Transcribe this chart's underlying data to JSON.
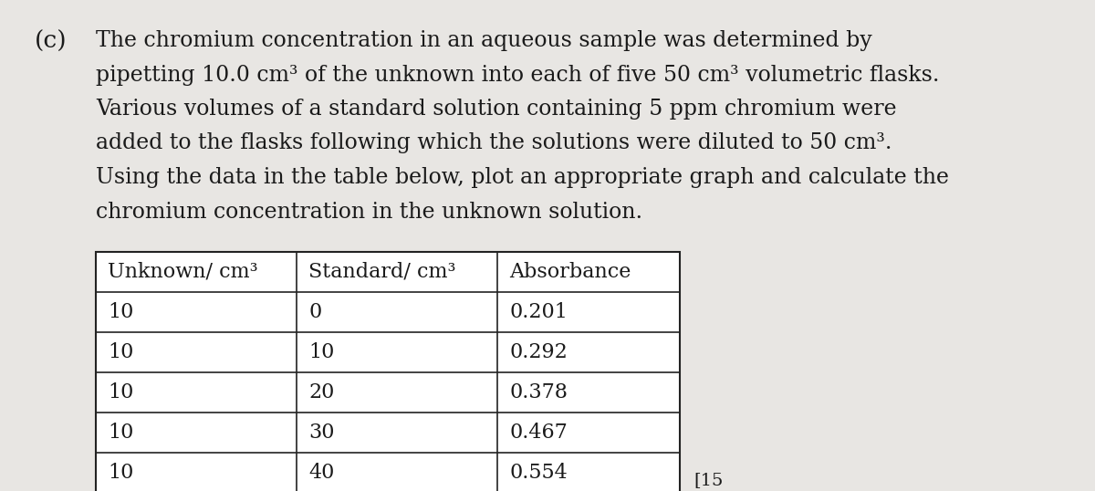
{
  "label": "(c)",
  "paragraph": [
    "The chromium concentration in an aqueous sample was determined by",
    "pipetting 10.0 cm³ of the unknown into each of five 50 cm³ volumetric flasks.",
    "Various volumes of a standard solution containing 5 ppm chromium were",
    "added to the flasks following which the solutions were diluted to 50 cm³.",
    "Using the data in the table below, plot an appropriate graph and calculate the",
    "chromium concentration in the unknown solution."
  ],
  "table_headers": [
    "Unknown/ cm³",
    "Standard/ cm³",
    "Absorbance"
  ],
  "table_data": [
    [
      "10",
      "0",
      "0.201"
    ],
    [
      "10",
      "10",
      "0.292"
    ],
    [
      "10",
      "20",
      "0.378"
    ],
    [
      "10",
      "30",
      "0.467"
    ],
    [
      "10",
      "40",
      "0.554"
    ]
  ],
  "footer": "[15",
  "bg_color": "#e8e6e3",
  "text_color": "#1a1a1a",
  "table_bg": "#ffffff",
  "font_size_label": 19,
  "font_size_text": 17,
  "font_size_table": 16
}
